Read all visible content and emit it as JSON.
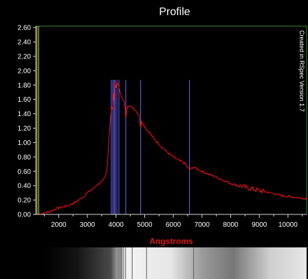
{
  "chart_data": {
    "type": "line",
    "title": "Profile",
    "xlabel": "Angstroms",
    "ylabel": "",
    "credit": "Created in RSpec Version 1.7",
    "xlim": [
      1200,
      10650
    ],
    "ylim": [
      0,
      2.62
    ],
    "x_ticks": [
      2000,
      3000,
      4000,
      5000,
      6000,
      7000,
      8000,
      9000,
      10000
    ],
    "x_tick_labels": [
      "2000",
      "3000",
      "4000",
      "5000",
      "6000",
      "7000",
      "8000",
      "9000",
      "10000"
    ],
    "y_ticks": [
      0.0,
      0.2,
      0.4,
      0.6,
      0.8,
      1.0,
      1.2,
      1.4,
      1.6,
      1.8,
      2.0,
      2.2,
      2.4,
      2.6
    ],
    "y_tick_labels": [
      "0.00",
      "0.20",
      "0.40",
      "0.60",
      "0.80",
      "1.00",
      "1.20",
      "1.40",
      "1.60",
      "1.80",
      "2.00",
      "2.20",
      "2.40",
      "2.60"
    ],
    "grid": false,
    "colors": {
      "background": "#000000",
      "frame": "#3a8a2a",
      "series": "#ff1010",
      "marker_lines": "#6a6aff",
      "edge_lines": "#d8d84a",
      "axis": "#d8d8d8"
    },
    "series": [
      {
        "x": [
          1300,
          1500,
          1700,
          1900,
          2100,
          2300,
          2500,
          2700,
          2900,
          3000,
          3100,
          3200,
          3300,
          3400,
          3500,
          3600,
          3650,
          3700,
          3750,
          3800,
          3850,
          3880,
          3920,
          3950,
          3970,
          4000,
          4030,
          4070,
          4100,
          4150,
          4200,
          4300,
          4340,
          4400,
          4500,
          4600,
          4700,
          4800,
          4861,
          4900,
          5000,
          5200,
          5400,
          5600,
          5800,
          6000,
          6200,
          6400,
          6563,
          6700,
          7000,
          7300,
          7600,
          8000,
          8300,
          8600,
          9000,
          9400,
          9800,
          10200,
          10650
        ],
        "y": [
          0.0,
          0.02,
          0.04,
          0.08,
          0.1,
          0.12,
          0.15,
          0.2,
          0.26,
          0.3,
          0.33,
          0.36,
          0.4,
          0.43,
          0.45,
          0.5,
          0.55,
          0.7,
          1.05,
          1.3,
          1.5,
          1.45,
          1.7,
          1.6,
          1.82,
          1.75,
          1.85,
          1.8,
          1.78,
          1.7,
          1.62,
          1.56,
          1.35,
          1.52,
          1.5,
          1.48,
          1.44,
          1.38,
          1.2,
          1.3,
          1.22,
          1.12,
          1.02,
          0.94,
          0.86,
          0.8,
          0.75,
          0.71,
          0.62,
          0.66,
          0.6,
          0.55,
          0.5,
          0.43,
          0.4,
          0.37,
          0.33,
          0.3,
          0.26,
          0.24,
          0.22
        ]
      }
    ],
    "marker_lines": [
      3835,
      3889,
      3934,
      3970,
      4030,
      4101,
      4340,
      4861,
      6563
    ],
    "marker_top": 1.87,
    "edge_lines": [
      1240,
      1300
    ]
  }
}
